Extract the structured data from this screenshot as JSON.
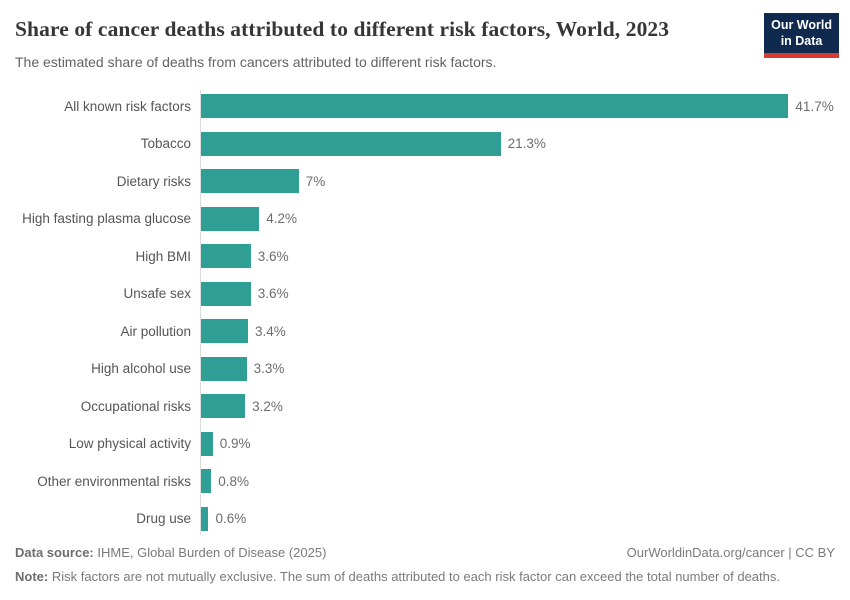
{
  "header": {
    "title": "Share of cancer deaths attributed to different risk factors, World, 2023",
    "subtitle": "The estimated share of deaths from cancers attributed to different risk factors.",
    "logo": {
      "line1": "Our World",
      "line2": "in Data"
    }
  },
  "chart_data": {
    "type": "bar",
    "orientation": "horizontal",
    "title": "Share of cancer deaths attributed to different risk factors, World, 2023",
    "xlabel": "",
    "ylabel": "",
    "xlim": [
      0,
      45
    ],
    "grid": false,
    "legend": false,
    "categories": [
      "All known risk factors",
      "Tobacco",
      "Dietary risks",
      "High fasting plasma glucose",
      "High BMI",
      "Unsafe sex",
      "Air pollution",
      "High alcohol use",
      "Occupational risks",
      "Low physical activity",
      "Other environmental risks",
      "Drug use"
    ],
    "values": [
      41.7,
      21.3,
      7,
      4.2,
      3.6,
      3.6,
      3.4,
      3.3,
      3.2,
      0.9,
      0.8,
      0.6
    ],
    "value_labels": [
      "41.7%",
      "21.3%",
      "7%",
      "4.2%",
      "3.6%",
      "3.6%",
      "3.4%",
      "3.3%",
      "3.2%",
      "0.9%",
      "0.8%",
      "0.6%"
    ]
  },
  "footer": {
    "data_source_label": "Data source:",
    "data_source": "IHME, Global Burden of Disease (2025)",
    "attribution": "OurWorldinData.org/cancer | CC BY",
    "note_label": "Note:",
    "note": "Risk factors are not mutually exclusive. The sum of deaths attributed to each risk factor can exceed the total number of deaths."
  },
  "colors": {
    "bar": "#2f9e95",
    "logo_background": "#0f2a4e",
    "logo_stripe": "#d53b33",
    "axis_line": "#dbdbdb"
  }
}
